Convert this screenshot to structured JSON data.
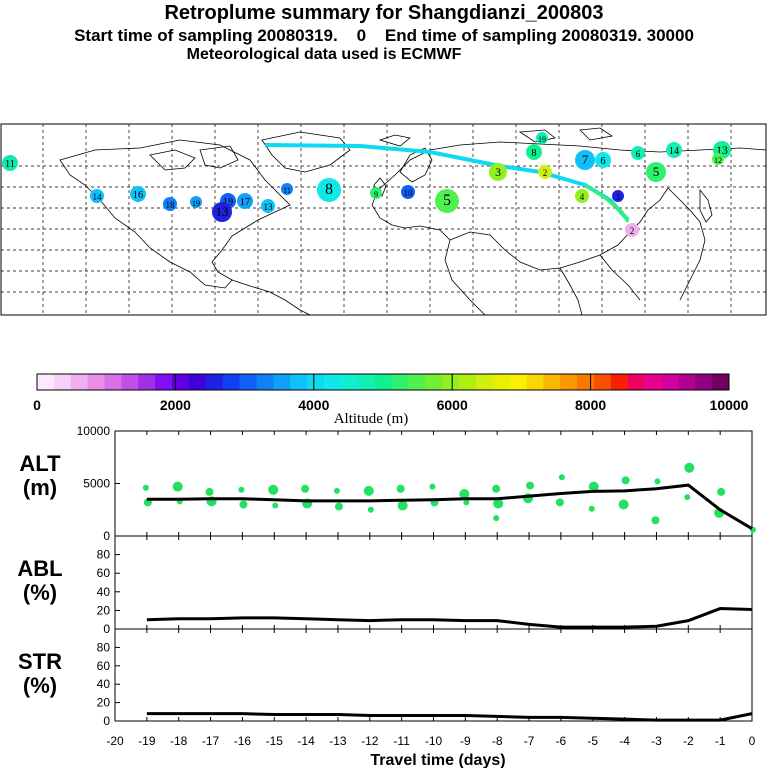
{
  "header": {
    "title": "Retroplume summary for Shangdianzi_200803",
    "subtitle_1": "Start time of sampling 20080319.    0    End time of sampling 20080319. 30000",
    "subtitle_2": "Meteorological data used is ECMWF"
  },
  "colorbar": {
    "label": "Altitude (m)",
    "ticks": [
      "0",
      "2000",
      "4000",
      "6000",
      "8000",
      "10000"
    ],
    "colors": [
      "#fde8fd",
      "#f8d0f8",
      "#f0b0f0",
      "#e890e8",
      "#d870e8",
      "#c050e8",
      "#a030e8",
      "#8010f0",
      "#6000e0",
      "#4000d8",
      "#2020e0",
      "#1040f0",
      "#1060f8",
      "#1080f8",
      "#10a0f8",
      "#10c0f8",
      "#10d8f0",
      "#10e8e8",
      "#10f0d0",
      "#10f0b0",
      "#10f090",
      "#30f070",
      "#50f050",
      "#70f030",
      "#90f020",
      "#b0f010",
      "#d0f010",
      "#e8f000",
      "#f8f000",
      "#f8d800",
      "#f8b800",
      "#f89800",
      "#f87800",
      "#f85000",
      "#f82000",
      "#f00060",
      "#e80090",
      "#d000a0",
      "#b00090",
      "#900080",
      "#700060"
    ]
  },
  "map": {
    "markers": [
      {
        "label": "11",
        "color": "#10e8b0"
      },
      {
        "label": "14",
        "color": "#10c0f8"
      },
      {
        "label": "16",
        "color": "#10c0f8"
      },
      {
        "label": "19",
        "color": "#10a0f8"
      },
      {
        "label": "18",
        "color": "#1080f8"
      },
      {
        "label": "19",
        "color": "#1060f8"
      },
      {
        "label": "13",
        "color": "#2020e0"
      },
      {
        "label": "17",
        "color": "#10a0f8"
      },
      {
        "label": "13",
        "color": "#10c0f8"
      },
      {
        "label": "11",
        "color": "#1080f8"
      },
      {
        "label": "8",
        "color": "#10e8e8"
      },
      {
        "label": "9",
        "color": "#30f070"
      },
      {
        "label": "10",
        "color": "#1060f8"
      },
      {
        "label": "5",
        "color": "#50f050"
      },
      {
        "label": "3",
        "color": "#90f020"
      },
      {
        "label": "2",
        "color": "#d0f010"
      },
      {
        "label": "19",
        "color": "#10f0b0"
      },
      {
        "label": "8",
        "color": "#10f090"
      },
      {
        "label": "7",
        "color": "#10c0f8"
      },
      {
        "label": "6",
        "color": "#10e8e8"
      },
      {
        "label": "6",
        "color": "#10f0b0"
      },
      {
        "label": "14",
        "color": "#10f0b0"
      },
      {
        "label": "13",
        "color": "#10f090"
      },
      {
        "label": "12",
        "color": "#50f050"
      },
      {
        "label": "5",
        "color": "#30f070"
      },
      {
        "label": "4",
        "color": "#90f020"
      },
      {
        "label": "3",
        "color": "#2020e0"
      },
      {
        "label": "2",
        "color": "#f0b0f0"
      }
    ]
  },
  "chart_data": [
    {
      "type": "scatter+line",
      "panel": "ALT",
      "ylabel": "ALT\n(m)",
      "ylabel_lines": [
        "ALT",
        "(m)"
      ],
      "xlim": [
        -20,
        0
      ],
      "ylim": [
        0,
        10000
      ],
      "yticks": [
        "0",
        "5000",
        "10000"
      ],
      "line": {
        "x": [
          -19,
          -18,
          -17,
          -16,
          -15,
          -14,
          -13,
          -12,
          -11,
          -10,
          -9,
          -8,
          -7,
          -6,
          -5,
          -4,
          -3,
          -2,
          -1,
          0
        ],
        "y": [
          3500,
          3500,
          3550,
          3550,
          3450,
          3350,
          3350,
          3350,
          3400,
          3450,
          3550,
          3550,
          3800,
          4050,
          4250,
          4300,
          4500,
          4850,
          2500,
          700
        ]
      },
      "points": {
        "x": [
          -19,
          -19,
          -18,
          -18,
          -17,
          -17,
          -16,
          -16,
          -15,
          -15,
          -14,
          -14,
          -13,
          -13,
          -12,
          -12,
          -11,
          -11,
          -10,
          -10,
          -9,
          -9,
          -8,
          -8,
          -8,
          -7,
          -7,
          -6,
          -6,
          -5,
          -5,
          -4,
          -4,
          -3,
          -3,
          -2,
          -2,
          -1,
          -1,
          0
        ],
        "y": [
          4600,
          3200,
          4700,
          3300,
          4200,
          3300,
          4400,
          3000,
          4400,
          2900,
          4500,
          3100,
          4300,
          2800,
          4300,
          2500,
          4500,
          2900,
          4700,
          3200,
          4000,
          3200,
          4500,
          3100,
          1700,
          4800,
          3600,
          5600,
          3200,
          4700,
          2600,
          5300,
          3000,
          5200,
          1500,
          6500,
          3700,
          4200,
          2200,
          600
        ]
      },
      "color": "#22e060"
    },
    {
      "type": "line",
      "panel": "ABL",
      "ylabel_lines": [
        "ABL",
        "(%)"
      ],
      "xlim": [
        -20,
        0
      ],
      "ylim": [
        0,
        100
      ],
      "yticks": [
        "0",
        "20",
        "40",
        "60",
        "80"
      ],
      "x": [
        -19,
        -18,
        -17,
        -16,
        -15,
        -14,
        -13,
        -12,
        -11,
        -10,
        -9,
        -8,
        -7,
        -6,
        -5,
        -4,
        -3,
        -2,
        -1,
        0
      ],
      "y": [
        10,
        11,
        11,
        12,
        12,
        11,
        10,
        9,
        10,
        10,
        9,
        9,
        5,
        2,
        2,
        2,
        3,
        9,
        22,
        21
      ]
    },
    {
      "type": "line",
      "panel": "STR",
      "ylabel_lines": [
        "STR",
        "(%)"
      ],
      "xlim": [
        -20,
        0
      ],
      "ylim": [
        0,
        100
      ],
      "yticks": [
        "0",
        "20",
        "40",
        "60",
        "80"
      ],
      "x": [
        -19,
        -18,
        -17,
        -16,
        -15,
        -14,
        -13,
        -12,
        -11,
        -10,
        -9,
        -8,
        -7,
        -6,
        -5,
        -4,
        -3,
        -2,
        -1,
        0
      ],
      "y": [
        8,
        8,
        8,
        8,
        7,
        7,
        7,
        6,
        6,
        6,
        6,
        5,
        4,
        4,
        3,
        2,
        1,
        1,
        1,
        8
      ],
      "xlabel": "Travel time (days)",
      "xticks": [
        "-20",
        "-19",
        "-18",
        "-17",
        "-16",
        "-15",
        "-14",
        "-13",
        "-12",
        "-11",
        "-10",
        "-9",
        "-8",
        "-7",
        "-6",
        "-5",
        "-4",
        "-3",
        "-2",
        "-1",
        "0"
      ]
    }
  ]
}
